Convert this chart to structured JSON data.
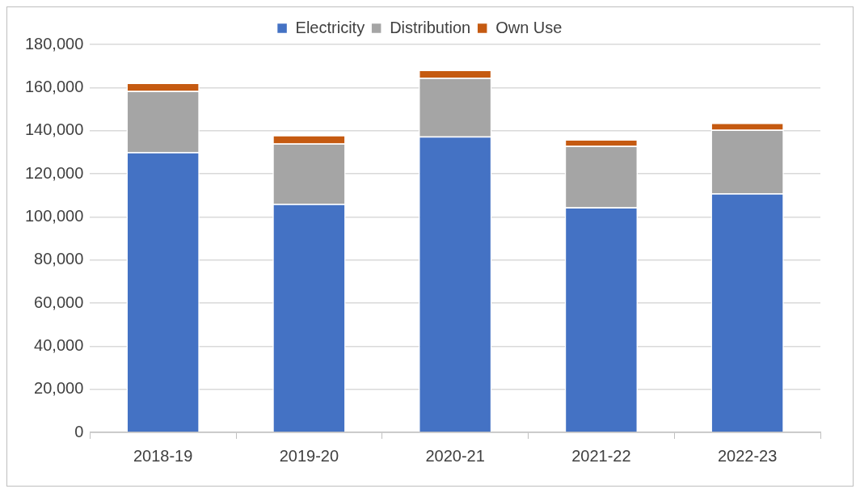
{
  "chart_data": {
    "type": "bar",
    "stacked": true,
    "categories": [
      "2018-19",
      "2019-20",
      "2020-21",
      "2021-22",
      "2022-23"
    ],
    "series": [
      {
        "name": "Electricity",
        "color": "#4472c4",
        "values": [
          130000,
          106000,
          137300,
          104400,
          110900
        ]
      },
      {
        "name": "Distribution",
        "color": "#a5a5a5",
        "values": [
          28400,
          28100,
          27200,
          28500,
          29500
        ]
      },
      {
        "name": "Own Use",
        "color": "#c55a11",
        "values": [
          3800,
          3800,
          3700,
          3000,
          3200
        ]
      }
    ],
    "ylim": [
      0,
      180000
    ],
    "yticks": [
      {
        "value": 0,
        "label": "0"
      },
      {
        "value": 20000,
        "label": "20,000"
      },
      {
        "value": 40000,
        "label": "40,000"
      },
      {
        "value": 60000,
        "label": "60,000"
      },
      {
        "value": 80000,
        "label": "80,000"
      },
      {
        "value": 100000,
        "label": "100,000"
      },
      {
        "value": 120000,
        "label": "120,000"
      },
      {
        "value": 140000,
        "label": "140,000"
      },
      {
        "value": 160000,
        "label": "160,000"
      },
      {
        "value": 180000,
        "label": "180,000"
      }
    ],
    "grid": "y",
    "legend": "top"
  }
}
